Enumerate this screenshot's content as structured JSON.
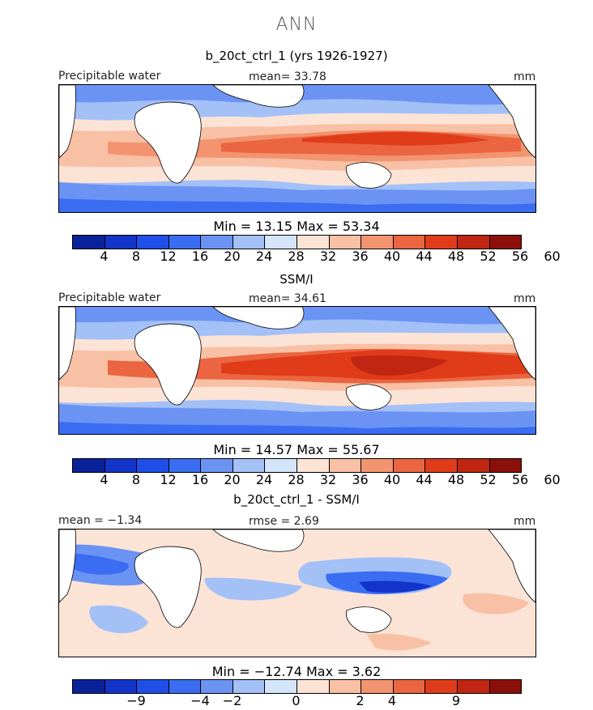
{
  "header": {
    "season": "ANN"
  },
  "panels": [
    {
      "title": "b_20ct_ctrl_1 (yrs 1926-1927)",
      "left_label": "Precipitable water",
      "center_label": "mean=  33.78",
      "right_label": "mm",
      "minmax": "Min =   13.15  Max =   53.34"
    },
    {
      "title": "SSM/I",
      "left_label": "Precipitable water",
      "center_label": "mean=  34.61",
      "right_label": "mm",
      "minmax": "Min =   14.57  Max =   55.67"
    },
    {
      "title": "b_20ct_ctrl_1 - SSM/I",
      "left_label": "mean =  −1.34",
      "center_label": "rmse =   2.69",
      "right_label": "mm",
      "minmax": "Min = −12.74  Max =    3.62"
    }
  ],
  "colorbar_abs": {
    "colors": [
      "#0a2299",
      "#1334c9",
      "#1f4fe8",
      "#3a6df2",
      "#6b93f4",
      "#a3c0f7",
      "#d4e4fb",
      "#fbe3d6",
      "#f8c0a5",
      "#f2946f",
      "#ea6540",
      "#e03c1a",
      "#c02612",
      "#8c0f0a"
    ],
    "ticks": [
      "4",
      "8",
      "12",
      "16",
      "20",
      "24",
      "28",
      "32",
      "36",
      "40",
      "44",
      "48",
      "52",
      "56",
      "60"
    ]
  },
  "colorbar_diff": {
    "colors": [
      "#0a2299",
      "#1334c9",
      "#1f4fe8",
      "#3a6df2",
      "#6b93f4",
      "#a3c0f7",
      "#d4e4fb",
      "#fbe3d6",
      "#f8c0a5",
      "#f2946f",
      "#ea6540",
      "#e03c1a",
      "#c02612",
      "#8c0f0a"
    ],
    "ticks": [
      "−9",
      "−4",
      "−2",
      "0",
      "2",
      "4",
      "9"
    ]
  }
}
